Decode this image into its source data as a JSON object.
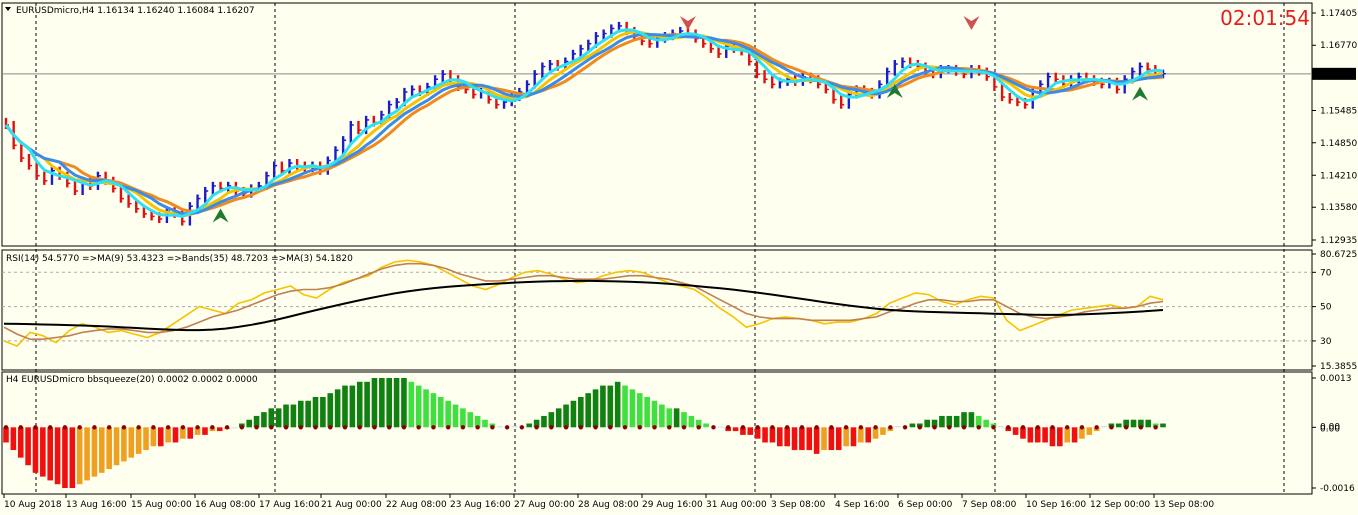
{
  "header": {
    "symbol_line": "EURUSDmicro,H4  1.16134 1.16240 1.16084 1.16207",
    "timer": "02:01:54",
    "rsi_line": "RSI(14) 54.5770  =>MA(9) 53.4323  =>Bands(35) 48.7203  =>MA(3) 54.1820",
    "squeeze_line": "H4 EURUSDmicro bbsqueeze(20) 0.0002 0.0002 0.0000",
    "current_price": "1.16207"
  },
  "colors": {
    "background": "#fffff0",
    "bull": "#1c1ccc",
    "bear": "#e01010",
    "ma_fast": "#2ee0f0",
    "ma_mid": "#3a8ce8",
    "ma_yellow": "#f5c400",
    "ma_orange": "#f08a20",
    "rsi": "#f5c400",
    "rsi_ma": "#c08050",
    "rsi_bands": "#000000",
    "sq_pos_strong": "#108010",
    "sq_pos_weak": "#40e040",
    "sq_neg_strong": "#f01010",
    "sq_neg_weak": "#f0a020",
    "arrow_up": "#207a30",
    "arrow_down": "#d05050"
  },
  "chart_data": [
    {
      "type": "candlestick",
      "name": "price",
      "y_ticks": [
        "1.17405",
        "1.16770",
        "1.15485",
        "1.14850",
        "1.14210",
        "1.13580",
        "1.12935"
      ],
      "ylim": [
        1.12935,
        1.17405
      ],
      "current_price": 1.16207,
      "grid": true,
      "x_ticks": [
        "10 Aug 2018",
        "13 Aug 16:00",
        "15 Aug 00:00",
        "16 Aug 08:00",
        "17 Aug 16:00",
        "21 Aug 00:00",
        "22 Aug 08:00",
        "23 Aug 16:00",
        "27 Aug 00:00",
        "28 Aug 08:00",
        "29 Aug 16:00",
        "31 Aug 00:00",
        "3 Sep 08:00",
        "4 Sep 16:00",
        "6 Sep 00:00",
        "7 Sep 08:00",
        "10 Sep 16:00",
        "12 Sep 00:00",
        "13 Sep 08:00"
      ],
      "close": [
        1.152,
        1.148,
        1.1455,
        1.144,
        1.142,
        1.141,
        1.143,
        1.142,
        1.1405,
        1.139,
        1.141,
        1.14,
        1.142,
        1.141,
        1.1395,
        1.1375,
        1.1365,
        1.1355,
        1.1345,
        1.134,
        1.1335,
        1.135,
        1.1345,
        1.133,
        1.136,
        1.1375,
        1.139,
        1.14,
        1.1395,
        1.14,
        1.139,
        1.1385,
        1.1395,
        1.14,
        1.142,
        1.144,
        1.143,
        1.1445,
        1.144,
        1.1435,
        1.144,
        1.143,
        1.145,
        1.147,
        1.149,
        1.152,
        1.151,
        1.153,
        1.1525,
        1.154,
        1.156,
        1.1565,
        1.1585,
        1.159,
        1.1585,
        1.1595,
        1.161,
        1.162,
        1.161,
        1.1595,
        1.159,
        1.158,
        1.1585,
        1.157,
        1.156,
        1.1565,
        1.1575,
        1.1585,
        1.16,
        1.162,
        1.1635,
        1.164,
        1.1635,
        1.1645,
        1.166,
        1.167,
        1.168,
        1.1695,
        1.17,
        1.171,
        1.1715,
        1.1705,
        1.1695,
        1.1685,
        1.168,
        1.169,
        1.1695,
        1.17,
        1.1705,
        1.17,
        1.169,
        1.168,
        1.167,
        1.166,
        1.1675,
        1.167,
        1.1665,
        1.1645,
        1.162,
        1.161,
        1.16,
        1.1605,
        1.161,
        1.1605,
        1.1615,
        1.161,
        1.16,
        1.159,
        1.157,
        1.156,
        1.158,
        1.159,
        1.1585,
        1.158,
        1.16,
        1.1625,
        1.164,
        1.1645,
        1.164,
        1.1635,
        1.1625,
        1.162,
        1.163,
        1.163,
        1.1625,
        1.162,
        1.163,
        1.1625,
        1.1615,
        1.1595,
        1.1575,
        1.157,
        1.1565,
        1.156,
        1.1585,
        1.16,
        1.1615,
        1.161,
        1.16,
        1.161,
        1.1615,
        1.161,
        1.1605,
        1.16,
        1.1605,
        1.159,
        1.161,
        1.1625,
        1.1635,
        1.163,
        1.162,
        1.1621
      ],
      "series": [
        {
          "name": "MA fast",
          "color": "#2ee0f0"
        },
        {
          "name": "MA mid",
          "color": "#3a8ce8"
        },
        {
          "name": "MA yellow",
          "color": "#f5c400"
        },
        {
          "name": "MA orange",
          "color": "#f08a20"
        }
      ],
      "signals": [
        {
          "bar": 28,
          "dir": "up"
        },
        {
          "bar": 89,
          "dir": "down"
        },
        {
          "bar": 116,
          "dir": "up"
        },
        {
          "bar": 126,
          "dir": "down"
        },
        {
          "bar": 148,
          "dir": "up"
        }
      ]
    },
    {
      "type": "line",
      "name": "RSI",
      "y_ticks": [
        "80.6725",
        "70",
        "50",
        "30",
        "15.3855"
      ],
      "ylim": [
        15.3855,
        80.6725
      ],
      "series": [
        {
          "name": "RSI",
          "color": "#f5c400",
          "values": [
            30,
            27,
            35,
            33,
            29,
            36,
            40,
            38,
            35,
            36,
            34,
            32,
            35,
            40,
            45,
            50,
            48,
            46,
            52,
            54,
            58,
            60,
            62,
            57,
            55,
            60,
            64,
            66,
            68,
            73,
            76,
            77,
            76,
            74,
            70,
            66,
            62,
            60,
            63,
            67,
            70,
            71,
            69,
            66,
            64,
            65,
            68,
            70,
            71,
            70,
            67,
            64,
            62,
            60,
            55,
            49,
            44,
            38,
            40,
            43,
            44,
            43,
            42,
            40,
            41,
            41,
            43,
            46,
            52,
            55,
            58,
            57,
            53,
            51,
            54,
            56,
            55,
            42,
            36,
            39,
            42,
            45,
            48,
            49,
            50,
            51,
            49,
            50,
            56,
            54
          ]
        },
        {
          "name": "MA(9)",
          "color": "#c08050",
          "values": [
            38,
            34,
            31,
            31,
            32,
            33,
            35,
            36,
            37,
            37,
            36,
            35,
            35,
            36,
            38,
            41,
            44,
            46,
            48,
            51,
            54,
            57,
            59,
            60,
            60,
            61,
            63,
            66,
            69,
            72,
            74,
            75,
            75,
            74,
            72,
            69,
            67,
            65,
            65,
            66,
            67,
            68,
            68,
            67,
            66,
            66,
            66,
            67,
            68,
            68,
            67,
            66,
            64,
            62,
            58,
            54,
            50,
            46,
            44,
            43,
            43,
            43,
            42,
            42,
            42,
            42,
            43,
            44,
            47,
            49,
            52,
            54,
            54,
            53,
            53,
            54,
            54,
            50,
            46,
            44,
            43,
            44,
            45,
            47,
            48,
            49,
            49,
            50,
            52,
            53
          ]
        },
        {
          "name": "Bands(35)",
          "color": "#000000",
          "values": [
            40,
            39.9,
            39.8,
            39.6,
            39.4,
            39.2,
            39,
            38.7,
            38.4,
            38,
            37.6,
            37.2,
            36.8,
            36.5,
            36.3,
            36.3,
            36.6,
            37.2,
            38.2,
            39.4,
            40.8,
            42.5,
            44.3,
            46.2,
            48,
            49.8,
            51.5,
            53.2,
            54.8,
            56.3,
            57.7,
            58.9,
            59.9,
            60.8,
            61.5,
            62.1,
            62.6,
            63.1,
            63.5,
            63.9,
            64.3,
            64.6,
            64.8,
            64.9,
            65,
            65,
            64.9,
            64.7,
            64.5,
            64.2,
            63.8,
            63.3,
            62.7,
            62.1,
            61.4,
            60.7,
            59.9,
            59,
            58,
            57,
            55.9,
            54.8,
            53.7,
            52.6,
            51.5,
            50.5,
            49.6,
            48.8,
            48.1,
            47.6,
            47.2,
            46.9,
            46.7,
            46.5,
            46.3,
            46.1,
            45.9,
            45.7,
            45.5,
            45.3,
            45.2,
            45.2,
            45.3,
            45.5,
            45.8,
            46.2,
            46.6,
            47,
            47.5,
            48
          ]
        }
      ]
    },
    {
      "type": "bar",
      "name": "bbsqueeze",
      "y_ticks": [
        "0.0013",
        "0.00",
        "0.00",
        "-0.0016"
      ],
      "ylim": [
        -0.0016,
        0.0013
      ],
      "values": [
        -0.0004,
        -0.0006,
        -0.0008,
        -0.001,
        -0.0012,
        -0.0013,
        -0.0014,
        -0.0015,
        -0.0016,
        -0.0016,
        -0.0015,
        -0.0014,
        -0.0013,
        -0.0012,
        -0.0011,
        -0.001,
        -0.0009,
        -0.0008,
        -0.0007,
        -0.0006,
        -0.0005,
        -0.0005,
        -0.0004,
        -0.0004,
        -0.0003,
        -0.0003,
        -0.0002,
        -0.0002,
        -0.0001,
        -0.0001,
        -5e-05,
        0,
        0.0001,
        0.0002,
        0.0003,
        0.0004,
        0.0005,
        0.0005,
        0.0006,
        0.0006,
        0.0007,
        0.0007,
        0.0008,
        0.0008,
        0.0009,
        0.001,
        0.0011,
        0.0011,
        0.0012,
        0.0012,
        0.0013,
        0.0013,
        0.0013,
        0.0013,
        0.0013,
        0.0012,
        0.0011,
        0.001,
        0.0009,
        0.0008,
        0.0007,
        0.0006,
        0.0005,
        0.0004,
        0.0003,
        0.0002,
        0.0001,
        3e-05,
        2e-05,
        3e-05,
        3e-05,
        0.0001,
        0.0002,
        0.0003,
        0.0004,
        0.0005,
        0.0006,
        0.0007,
        0.0008,
        0.0009,
        0.001,
        0.0011,
        0.0011,
        0.0012,
        0.0011,
        0.001,
        0.0009,
        0.0008,
        0.0007,
        0.0006,
        0.0005,
        0.0005,
        0.0004,
        0.0003,
        0.0002,
        0.0001,
        3e-05,
        2e-05,
        -0.0001,
        -0.0001,
        -0.0002,
        -0.0002,
        -0.0003,
        -0.0004,
        -0.0004,
        -0.0005,
        -0.0005,
        -0.0006,
        -0.0006,
        -0.0006,
        -0.0007,
        -0.0006,
        -0.0006,
        -0.0006,
        -0.0005,
        -0.0005,
        -0.0004,
        -0.0004,
        -0.0003,
        -0.0002,
        -0.0001,
        3e-05,
        3e-05,
        0.0001,
        0.0001,
        0.0002,
        0.0002,
        0.0003,
        0.0003,
        0.0003,
        0.0004,
        0.0004,
        0.0003,
        0.0002,
        0.0001,
        3e-05,
        -0.0001,
        -0.0002,
        -0.0003,
        -0.0004,
        -0.0004,
        -0.0004,
        -0.0005,
        -0.0005,
        -0.0004,
        -0.0004,
        -0.0003,
        -0.0002,
        -0.0001,
        3e-05,
        0.0001,
        0.0001,
        0.0002,
        0.0002,
        0.0002,
        0.0002,
        0.0001,
        0.0001
      ]
    }
  ]
}
